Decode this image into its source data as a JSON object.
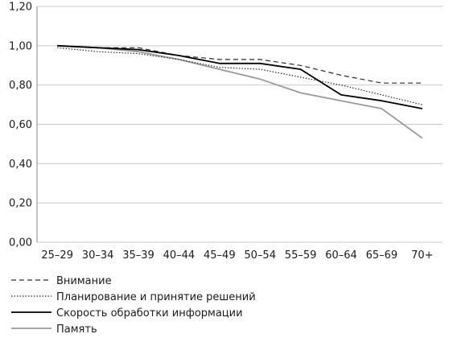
{
  "chart_data": {
    "type": "line",
    "categories": [
      "25–29",
      "30–34",
      "35–39",
      "40–44",
      "45–49",
      "50–54",
      "55–59",
      "60–64",
      "65–69",
      "70+"
    ],
    "ylim": [
      0,
      1.2
    ],
    "yticks": [
      "0,00",
      "0,20",
      "0,40",
      "0,60",
      "0,80",
      "1,00",
      "1,20"
    ],
    "grid": true,
    "legend_position": "bottom-left",
    "series": [
      {
        "name": "Внимание",
        "style": "dashed",
        "color": "#2a2a2a",
        "values": [
          1.0,
          0.99,
          0.99,
          0.95,
          0.93,
          0.93,
          0.9,
          0.85,
          0.81,
          0.81
        ]
      },
      {
        "name": "Планирование и принятие решений",
        "style": "dotted",
        "color": "#2a2a2a",
        "values": [
          0.99,
          0.97,
          0.96,
          0.93,
          0.89,
          0.88,
          0.84,
          0.8,
          0.75,
          0.7
        ]
      },
      {
        "name": "Скорость обработки информации",
        "style": "solid",
        "color": "#000000",
        "values": [
          1.0,
          0.99,
          0.98,
          0.95,
          0.91,
          0.91,
          0.88,
          0.75,
          0.72,
          0.68
        ]
      },
      {
        "name": "Память",
        "style": "solid",
        "color": "#9a9a9a",
        "values": [
          1.0,
          0.99,
          0.97,
          0.93,
          0.88,
          0.83,
          0.76,
          0.72,
          0.68,
          0.53
        ]
      }
    ]
  }
}
